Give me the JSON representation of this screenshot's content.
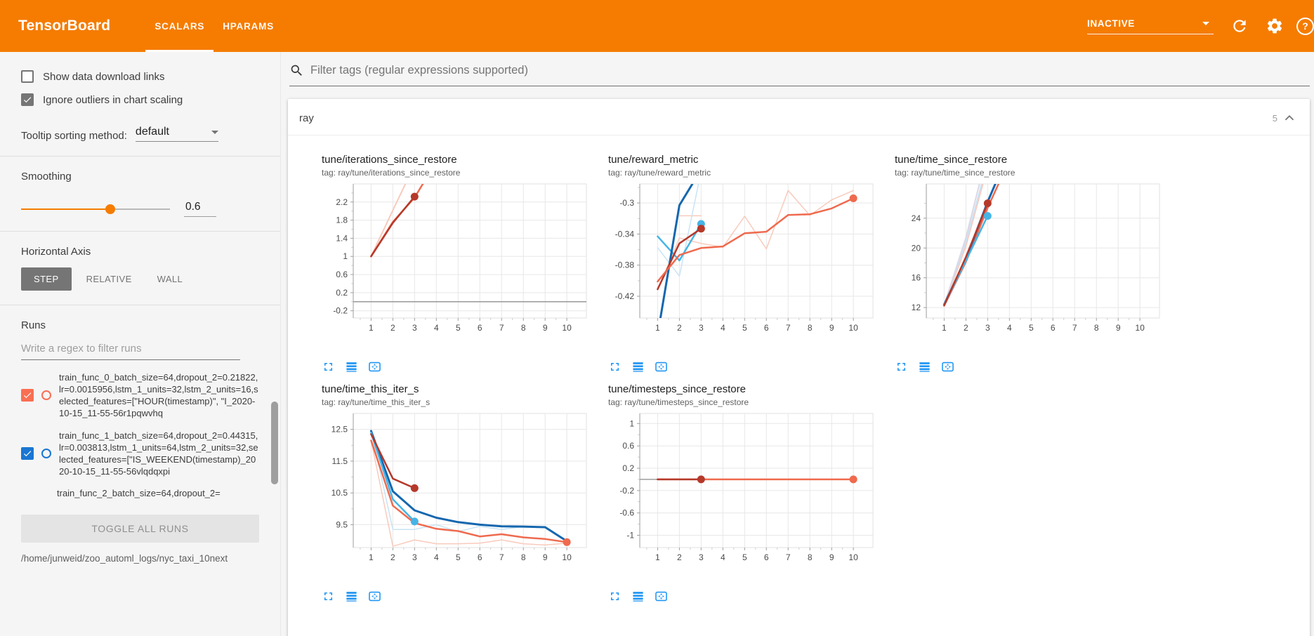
{
  "header": {
    "title": "TensorBoard",
    "tabs": [
      {
        "label": "SCALARS",
        "active": true
      },
      {
        "label": "HPARAMS",
        "active": false
      }
    ],
    "status": "INACTIVE",
    "help_glyph": "?"
  },
  "colors": {
    "accent_orange": "#f57c00",
    "icon_blue": "#2196f3",
    "run0": "#f96f53",
    "run1": "#1976d2"
  },
  "sidebar": {
    "checkboxes": [
      {
        "label": "Show data download links",
        "checked": false
      },
      {
        "label": "Ignore outliers in chart scaling",
        "checked": true
      }
    ],
    "tooltip_sorting": {
      "label": "Tooltip sorting method:",
      "value": "default"
    },
    "smoothing": {
      "label": "Smoothing",
      "value": "0.6",
      "percent": 60
    },
    "horizontal_axis": {
      "label": "Horizontal Axis",
      "options": [
        "STEP",
        "RELATIVE",
        "WALL"
      ],
      "selected": "STEP"
    },
    "runs": {
      "label": "Runs",
      "filter_placeholder": "Write a regex to filter runs",
      "items": [
        {
          "text": "train_func_0_batch_size=64,dropout_2=0.21822,lr=0.0015956,lstm_1_units=32,lstm_2_units=16,selected_features=[\"HOUR(timestamp)\", \"I_2020-10-15_11-55-56r1pqwvhq",
          "checked": true,
          "color": "#f96f53",
          "partial": false
        },
        {
          "text": "train_func_1_batch_size=64,dropout_2=0.44315,lr=0.003813,lstm_1_units=64,lstm_2_units=32,selected_features=[\"IS_WEEKEND(timestamp)_2020-10-15_11-55-56vlqdqxpi",
          "checked": true,
          "color": "#1976d2",
          "partial": false
        },
        {
          "text": "train_func_2_batch_size=64,dropout_2=",
          "checked": false,
          "color": "#9e9e9e",
          "partial": true
        }
      ],
      "toggle_all_label": "TOGGLE ALL RUNS",
      "log_path": "/home/junweid/zoo_automl_logs/nyc_taxi_10next"
    }
  },
  "main": {
    "filter_placeholder": "Filter tags (regular expressions supported)",
    "section": {
      "name": "ray",
      "count": "5"
    },
    "chart_toolbar_icons": [
      "expand-icon",
      "runs-list-icon",
      "fit-domain-icon"
    ]
  },
  "chart_data": [
    {
      "type": "line",
      "title": "tune/iterations_since_restore",
      "tag_label": "tag: ray/tune/iterations_since_restore",
      "xticks": [
        1,
        2,
        3,
        4,
        5,
        6,
        7,
        8,
        9,
        10
      ],
      "xlim": [
        0.18,
        10.9
      ],
      "ylim": [
        -0.36,
        2.6
      ],
      "yticks": [
        -0.2,
        0.2,
        0.6,
        1,
        1.4,
        1.8,
        2.2
      ],
      "zero_line": true,
      "series": [
        {
          "name": "run-0-raw",
          "color": "#f9cabc",
          "width": 2,
          "points": [
            [
              1,
              1
            ],
            [
              2,
              2.02
            ],
            [
              2.58,
              2.6
            ]
          ]
        },
        {
          "name": "run-2-smoothed",
          "color": "#ef6a4e",
          "width": 2.5,
          "points": [
            [
              1,
              1
            ],
            [
              2,
              1.76
            ],
            [
              3,
              2.3
            ],
            [
              3.38,
              2.6
            ]
          ]
        },
        {
          "name": "run-0-smoothed",
          "color": "#b5392a",
          "width": 2.5,
          "points": [
            [
              1,
              1
            ],
            [
              2,
              1.74
            ],
            [
              3,
              2.32
            ]
          ],
          "dot": [
            3,
            2.32
          ]
        }
      ]
    },
    {
      "type": "line",
      "title": "tune/reward_metric",
      "tag_label": "tag: ray/tune/reward_metric",
      "xticks": [
        1,
        2,
        3,
        4,
        5,
        6,
        7,
        8,
        9,
        10
      ],
      "xlim": [
        0.18,
        10.9
      ],
      "ylim": [
        -0.448,
        -0.2755
      ],
      "yticks": [
        -0.42,
        -0.38,
        -0.34,
        -0.3
      ],
      "zero_line": false,
      "series": [
        {
          "name": "run-2-raw",
          "color": "#f9cabc",
          "width": 1.5,
          "points": [
            [
              1,
              -0.412
            ],
            [
              2,
              -0.345
            ],
            [
              3,
              -0.352
            ],
            [
              4,
              -0.357
            ],
            [
              5,
              -0.317
            ],
            [
              6,
              -0.359
            ],
            [
              7,
              -0.284
            ],
            [
              8,
              -0.316
            ],
            [
              9,
              -0.296
            ],
            [
              10,
              -0.284
            ]
          ]
        },
        {
          "name": "run-0-raw",
          "color": "#f9cabc",
          "width": 1.5,
          "points": [
            [
              2,
              -0.3165
            ],
            [
              3,
              -0.3165
            ]
          ]
        },
        {
          "name": "run-1-raw",
          "color": "#c9e4f5",
          "width": 1.5,
          "points": [
            [
              1,
              -0.3575
            ],
            [
              2,
              -0.394
            ],
            [
              2.88,
              -0.2755
            ]
          ]
        },
        {
          "name": "run-3-smoothed",
          "color": "#45b5e6",
          "width": 2.5,
          "points": [
            [
              1,
              -0.343
            ],
            [
              2,
              -0.374
            ],
            [
              3,
              -0.327
            ]
          ],
          "dot": [
            3,
            -0.327
          ]
        },
        {
          "name": "run-1-smoothed",
          "color": "#1467af",
          "width": 3,
          "points": [
            [
              1.13,
              -0.448
            ],
            [
              2,
              -0.303
            ],
            [
              2.6,
              -0.2755
            ]
          ]
        },
        {
          "name": "run-0-smoothed",
          "color": "#b5392a",
          "width": 2.5,
          "points": [
            [
              1,
              -0.411
            ],
            [
              2,
              -0.352
            ],
            [
              3,
              -0.333
            ]
          ],
          "dot": [
            3,
            -0.333
          ]
        },
        {
          "name": "run-2-smoothed",
          "color": "#ef6a4e",
          "width": 2.5,
          "points": [
            [
              1,
              -0.401
            ],
            [
              2,
              -0.367
            ],
            [
              3,
              -0.358
            ],
            [
              4,
              -0.356
            ],
            [
              5,
              -0.339
            ],
            [
              6,
              -0.337
            ],
            [
              7,
              -0.3155
            ],
            [
              8,
              -0.3145
            ],
            [
              9,
              -0.307
            ],
            [
              10,
              -0.294
            ]
          ],
          "dot": [
            10,
            -0.294
          ]
        }
      ]
    },
    {
      "type": "line",
      "title": "tune/time_since_restore",
      "tag_label": "tag: ray/tune/time_since_restore",
      "xticks": [
        1,
        2,
        3,
        4,
        5,
        6,
        7,
        8,
        9,
        10
      ],
      "xlim": [
        0.18,
        10.9
      ],
      "ylim": [
        10.6,
        28.6
      ],
      "yticks": [
        12,
        16,
        20,
        24
      ],
      "zero_line": false,
      "series": [
        {
          "name": "run-2-raw",
          "color": "#f9cabc",
          "width": 2,
          "points": [
            [
              1,
              12.2
            ],
            [
              2,
              20.3
            ],
            [
              2.78,
              28.6
            ]
          ]
        },
        {
          "name": "run-1-raw",
          "color": "#c9e4f5",
          "width": 2,
          "points": [
            [
              1,
              12.4
            ],
            [
              2,
              20.8
            ],
            [
              2.72,
              28.6
            ]
          ]
        },
        {
          "name": "run-4-raw",
          "color": "#dcd7e6",
          "width": 2,
          "points": [
            [
              1,
              12.3
            ],
            [
              2,
              21.4
            ],
            [
              2.62,
              28.6
            ]
          ]
        },
        {
          "name": "run-2-smoothed",
          "color": "#ef6a4e",
          "width": 2.5,
          "points": [
            [
              1,
              12.25
            ],
            [
              2,
              18.15
            ],
            [
              3,
              25.4
            ],
            [
              3.5,
              28.6
            ]
          ]
        },
        {
          "name": "run-1-smoothed",
          "color": "#1467af",
          "width": 3,
          "points": [
            [
              1,
              12.4
            ],
            [
              2,
              18.55
            ],
            [
              3,
              26.2
            ],
            [
              3.35,
              28.6
            ]
          ]
        },
        {
          "name": "run-3-smoothed",
          "color": "#45b5e6",
          "width": 2.5,
          "points": [
            [
              1,
              12.35
            ],
            [
              2,
              18.3
            ],
            [
              3,
              24.3
            ]
          ],
          "dot": [
            3,
            24.3
          ]
        },
        {
          "name": "run-0-smoothed",
          "color": "#b5392a",
          "width": 2.5,
          "points": [
            [
              1,
              12.3
            ],
            [
              2,
              18.8
            ],
            [
              3,
              26
            ]
          ],
          "dot": [
            3,
            26
          ]
        }
      ]
    },
    {
      "type": "line",
      "title": "tune/time_this_iter_s",
      "tag_label": "tag: ray/tune/time_this_iter_s",
      "xticks": [
        1,
        2,
        3,
        4,
        5,
        6,
        7,
        8,
        9,
        10
      ],
      "xlim": [
        0.18,
        10.9
      ],
      "ylim": [
        8.78,
        13.0
      ],
      "yticks": [
        9.5,
        10.5,
        11.5,
        12.5
      ],
      "zero_line": false,
      "series": [
        {
          "name": "run-2-raw",
          "color": "#f9cabc",
          "width": 1.5,
          "points": [
            [
              1,
              12.15
            ],
            [
              2,
              8.82
            ],
            [
              3,
              9.02
            ],
            [
              4,
              8.9
            ],
            [
              5,
              8.9
            ],
            [
              6,
              8.92
            ],
            [
              7,
              9.02
            ],
            [
              8,
              8.9
            ],
            [
              9,
              8.86
            ],
            [
              10,
              8.92
            ]
          ]
        },
        {
          "name": "run-1-raw",
          "color": "#c9e4f5",
          "width": 1.5,
          "points": [
            [
              1,
              12.45
            ],
            [
              2,
              9.35
            ],
            [
              3,
              9.35
            ],
            [
              4,
              9.5
            ],
            [
              5,
              9.28
            ],
            [
              6,
              9.45
            ],
            [
              7,
              9.35
            ],
            [
              8,
              9.44
            ],
            [
              9,
              9.44
            ],
            [
              10,
              8.98
            ]
          ]
        },
        {
          "name": "run-1-smoothed",
          "color": "#1467af",
          "width": 3,
          "points": [
            [
              1,
              12.45
            ],
            [
              2,
              10.55
            ],
            [
              3,
              9.95
            ],
            [
              4,
              9.72
            ],
            [
              5,
              9.58
            ],
            [
              6,
              9.5
            ],
            [
              7,
              9.45
            ],
            [
              8,
              9.44
            ],
            [
              9,
              9.42
            ],
            [
              10,
              8.98
            ]
          ]
        },
        {
          "name": "run-2-smoothed",
          "color": "#ef6a4e",
          "width": 2.5,
          "points": [
            [
              1,
              12.15
            ],
            [
              2,
              10.1
            ],
            [
              3,
              9.55
            ],
            [
              4,
              9.37
            ],
            [
              5,
              9.3
            ],
            [
              6,
              9.13
            ],
            [
              7,
              9.2
            ],
            [
              8,
              9.1
            ],
            [
              9,
              9.05
            ],
            [
              10,
              8.95
            ]
          ],
          "dot": [
            10,
            8.95
          ]
        },
        {
          "name": "run-3-smoothed",
          "color": "#45b5e6",
          "width": 2.5,
          "points": [
            [
              1,
              12.4
            ],
            [
              2,
              10.3
            ],
            [
              3,
              9.6
            ]
          ],
          "dot": [
            3,
            9.6
          ]
        },
        {
          "name": "run-0-smoothed",
          "color": "#b5392a",
          "width": 2.5,
          "points": [
            [
              1,
              12.35
            ],
            [
              2,
              10.95
            ],
            [
              3,
              10.65
            ]
          ],
          "dot": [
            3,
            10.65
          ]
        }
      ]
    },
    {
      "type": "line",
      "title": "tune/timesteps_since_restore",
      "tag_label": "tag: ray/tune/timesteps_since_restore",
      "xticks": [
        1,
        2,
        3,
        4,
        5,
        6,
        7,
        8,
        9,
        10
      ],
      "xlim": [
        0.18,
        10.9
      ],
      "ylim": [
        -1.22,
        1.18
      ],
      "yticks": [
        -1,
        -0.6,
        -0.2,
        0.2,
        0.6,
        1
      ],
      "zero_line": false,
      "series": [
        {
          "name": "axis-origin-segment",
          "color": "#9e9e9e",
          "width": 1.5,
          "points": [
            [
              0.18,
              0
            ],
            [
              1,
              0
            ]
          ]
        },
        {
          "name": "run-2-smoothed",
          "color": "#ef6a4e",
          "width": 2.5,
          "points": [
            [
              1,
              0
            ],
            [
              10,
              0
            ]
          ],
          "dot": [
            10,
            0
          ]
        },
        {
          "name": "run-0-smoothed",
          "color": "#b5392a",
          "width": 2.5,
          "points": [
            [
              1,
              0
            ],
            [
              3,
              0
            ]
          ],
          "dot": [
            3,
            0
          ]
        }
      ]
    }
  ]
}
